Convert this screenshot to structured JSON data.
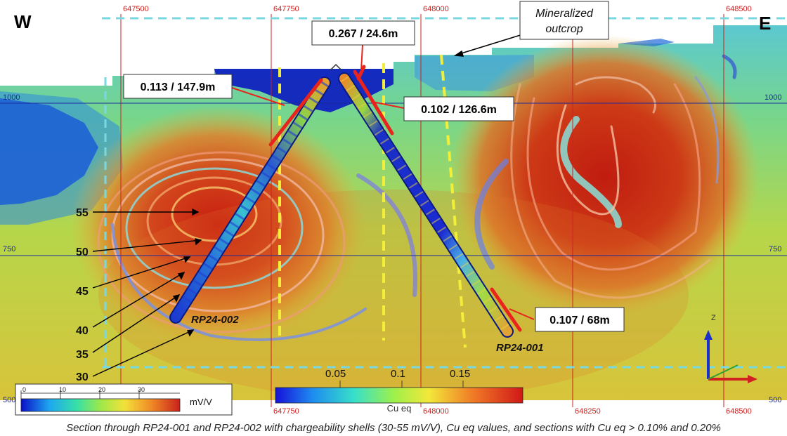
{
  "section": {
    "west_label": "W",
    "east_label": "E",
    "easting_top": [
      "647500",
      "647750",
      "648000",
      "648500"
    ],
    "easting_bottom": [
      "647750",
      "648000",
      "648250",
      "648500"
    ],
    "elevations_left": [
      "1000",
      "750",
      "500"
    ],
    "elevations_right": [
      "1000",
      "750",
      "500"
    ],
    "outcrop_label": [
      "Mineralized",
      "outcrop"
    ]
  },
  "drill_holes": [
    {
      "name": "RP24-001"
    },
    {
      "name": "RP24-002"
    }
  ],
  "intercepts": [
    {
      "label": "0.267 / 24.6m"
    },
    {
      "label": "0.113 / 147.9m"
    },
    {
      "label": "0.102 / 126.6m"
    },
    {
      "label": "0.107 / 68m"
    }
  ],
  "chargeability_shells": [
    "55",
    "50",
    "45",
    "40",
    "35",
    "30"
  ],
  "chargeability_scale": {
    "ticks": [
      "0",
      "10",
      "20",
      "30"
    ],
    "unit": "mV/V"
  },
  "cueq_scale": {
    "ticks": [
      "0.05",
      "0.1",
      "0.15"
    ],
    "label": "Cu eq"
  },
  "axis_triad": {
    "z": "Z"
  },
  "caption": "Section through RP24-001 and RP24-002 with chargeability shells (30-55 mV/V), Cu eq values, and sections with Cu eq > 0.10% and 0.20%",
  "colors": {
    "ip_high": "#c22a12",
    "ip_low": "#0a1fb8",
    "intercept_bar": "#e8241c",
    "outcrop_line": "#f2ee3a",
    "grid_red": "#cc2222",
    "grid_blue": "#1a2a9a"
  }
}
